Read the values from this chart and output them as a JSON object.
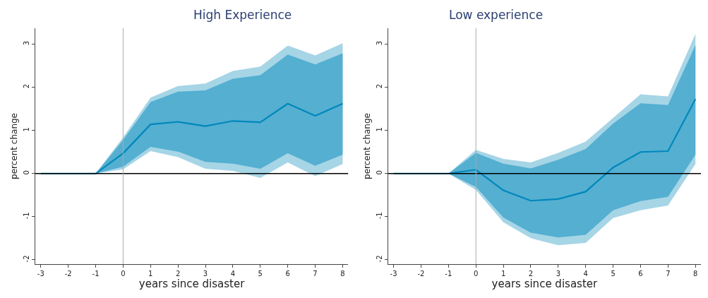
{
  "chart_data": [
    {
      "type": "line",
      "title": "High Experience",
      "xlabel": "years since disaster",
      "ylabel": "percent change",
      "x": [
        -3,
        -2,
        -1,
        0,
        1,
        2,
        3,
        4,
        5,
        6,
        7,
        8
      ],
      "xlim": [
        -3.2,
        8.2
      ],
      "xticks": [
        -3,
        -2,
        -1,
        0,
        1,
        2,
        3,
        4,
        5,
        6,
        7,
        8
      ],
      "ylim": [
        -2.1,
        3.37
      ],
      "yticks": [
        -2,
        -1,
        0,
        1,
        2,
        3
      ],
      "series": [
        {
          "color": "#a6d5e6",
          "values": [
            null,
            null,
            null,
            null,
            null,
            null,
            null,
            null,
            null,
            null,
            null,
            null
          ],
          "lower": [
            0,
            0,
            0,
            0.1,
            0.52,
            0.38,
            0.11,
            0.06,
            -0.1,
            0.26,
            -0.06,
            0.22
          ],
          "upper": [
            0,
            0,
            0,
            0.84,
            1.76,
            2.03,
            2.09,
            2.38,
            2.48,
            2.97,
            2.74,
            3.02
          ]
        },
        {
          "color": "#0087bb",
          "values": [
            0,
            0,
            0,
            0.47,
            1.14,
            1.2,
            1.1,
            1.22,
            1.19,
            1.62,
            1.34,
            1.62
          ],
          "lower": [
            0,
            0,
            0,
            0.16,
            0.62,
            0.51,
            0.27,
            0.23,
            0.11,
            0.47,
            0.18,
            0.44
          ],
          "upper": [
            0,
            0,
            0,
            0.78,
            1.66,
            1.9,
            1.93,
            2.2,
            2.28,
            2.76,
            2.53,
            2.79
          ]
        }
      ],
      "ref_lines": [
        {
          "axis": "y",
          "value": 0,
          "color": "#000000"
        },
        {
          "axis": "x",
          "value": 0,
          "color": "#aaaaaa"
        }
      ]
    },
    {
      "type": "line",
      "title": "Low experience",
      "xlabel": "years since disaster",
      "ylabel": "percent change",
      "x": [
        -3,
        -2,
        -1,
        0,
        1,
        2,
        3,
        4,
        5,
        6,
        7,
        8
      ],
      "xlim": [
        -3.2,
        8.2
      ],
      "xticks": [
        -3,
        -2,
        -1,
        0,
        1,
        2,
        3,
        4,
        5,
        6,
        7,
        8
      ],
      "ylim": [
        -2.1,
        3.37
      ],
      "yticks": [
        -2,
        -1,
        0,
        1,
        2,
        3
      ],
      "series": [
        {
          "color": "#a6d5e6",
          "values": [
            null,
            null,
            null,
            null,
            null,
            null,
            null,
            null,
            null,
            null,
            null,
            null
          ],
          "lower": [
            0,
            0,
            0,
            -0.38,
            -1.13,
            -1.5,
            -1.66,
            -1.61,
            -1.03,
            -0.85,
            -0.74,
            0.22
          ],
          "upper": [
            0,
            0,
            0,
            0.55,
            0.34,
            0.26,
            0.48,
            0.74,
            1.29,
            1.84,
            1.79,
            3.24
          ]
        },
        {
          "color": "#0087bb",
          "values": [
            0,
            0,
            0,
            0.09,
            -0.39,
            -0.63,
            -0.59,
            -0.42,
            0.14,
            0.5,
            0.52,
            1.73
          ],
          "lower": [
            0,
            0,
            0,
            -0.31,
            -1.02,
            -1.37,
            -1.48,
            -1.42,
            -0.85,
            -0.64,
            -0.54,
            0.44
          ],
          "upper": [
            0,
            0,
            0,
            0.48,
            0.23,
            0.12,
            0.32,
            0.57,
            1.16,
            1.63,
            1.59,
            2.98
          ]
        }
      ],
      "ref_lines": [
        {
          "axis": "y",
          "value": 0,
          "color": "#000000"
        },
        {
          "axis": "x",
          "value": 0,
          "color": "#aaaaaa"
        }
      ]
    }
  ]
}
